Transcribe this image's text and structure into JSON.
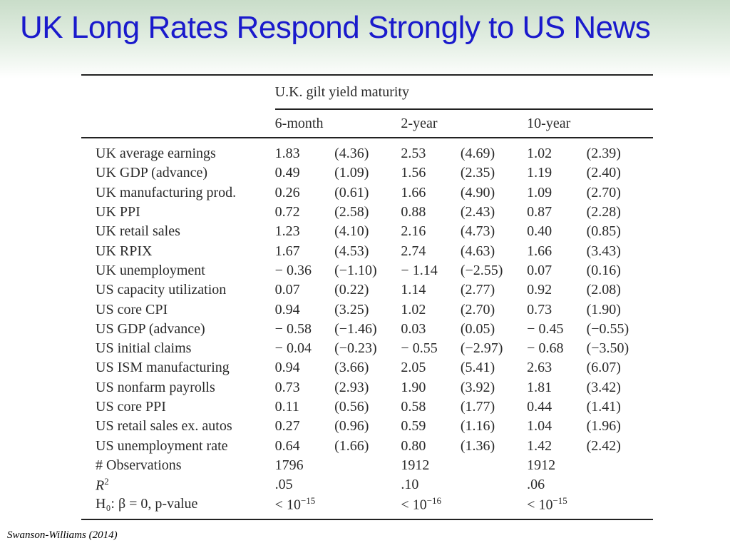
{
  "slide": {
    "title": "UK Long Rates Respond Strongly to US News",
    "source": "Swanson-Williams (2014)"
  },
  "table": {
    "group_header": "U.K. gilt yield maturity",
    "columns": [
      "6-month",
      "2-year",
      "10-year"
    ],
    "rows": [
      {
        "label": "UK average earnings",
        "values": [
          "1.83",
          "(4.36)",
          "2.53",
          "(4.69)",
          "1.02",
          "(2.39)"
        ]
      },
      {
        "label": "UK GDP (advance)",
        "values": [
          "0.49",
          "(1.09)",
          "1.56",
          "(2.35)",
          "1.19",
          "(2.40)"
        ]
      },
      {
        "label": "UK manufacturing prod.",
        "values": [
          "0.26",
          "(0.61)",
          "1.66",
          "(4.90)",
          "1.09",
          "(2.70)"
        ]
      },
      {
        "label": "UK PPI",
        "values": [
          "0.72",
          "(2.58)",
          "0.88",
          "(2.43)",
          "0.87",
          "(2.28)"
        ]
      },
      {
        "label": "UK retail sales",
        "values": [
          "1.23",
          "(4.10)",
          "2.16",
          "(4.73)",
          "0.40",
          "(0.85)"
        ]
      },
      {
        "label": "UK RPIX",
        "values": [
          "1.67",
          "(4.53)",
          "2.74",
          "(4.63)",
          "1.66",
          "(3.43)"
        ]
      },
      {
        "label": "UK unemployment",
        "values": [
          "− 0.36",
          "(−1.10)",
          "− 1.14",
          "(−2.55)",
          "0.07",
          "(0.16)"
        ]
      },
      {
        "label": "US capacity utilization",
        "values": [
          "0.07",
          "(0.22)",
          "1.14",
          "(2.77)",
          "0.92",
          "(2.08)"
        ]
      },
      {
        "label": "US core CPI",
        "values": [
          "0.94",
          "(3.25)",
          "1.02",
          "(2.70)",
          "0.73",
          "(1.90)"
        ]
      },
      {
        "label": "US GDP (advance)",
        "values": [
          "− 0.58",
          "(−1.46)",
          "0.03",
          "(0.05)",
          "− 0.45",
          "(−0.55)"
        ]
      },
      {
        "label": "US initial claims",
        "values": [
          "− 0.04",
          "(−0.23)",
          "− 0.55",
          "(−2.97)",
          "− 0.68",
          "(−3.50)"
        ]
      },
      {
        "label": "US ISM manufacturing",
        "values": [
          "0.94",
          "(3.66)",
          "2.05",
          "(5.41)",
          "2.63",
          "(6.07)"
        ]
      },
      {
        "label": "US nonfarm payrolls",
        "values": [
          "0.73",
          "(2.93)",
          "1.90",
          "(3.92)",
          "1.81",
          "(3.42)"
        ]
      },
      {
        "label": "US core PPI",
        "values": [
          "0.11",
          "(0.56)",
          "0.58",
          "(1.77)",
          "0.44",
          "(1.41)"
        ]
      },
      {
        "label": "US retail sales ex. autos",
        "values": [
          "0.27",
          "(0.96)",
          "0.59",
          "(1.16)",
          "1.04",
          "(1.96)"
        ]
      },
      {
        "label": "US unemployment rate",
        "values": [
          "0.64",
          "(1.66)",
          "0.80",
          "(1.36)",
          "1.42",
          "(2.42)"
        ]
      },
      {
        "label": "# Observations",
        "values": [
          "1796",
          "",
          "1912",
          "",
          "1912",
          ""
        ]
      }
    ],
    "r2": {
      "label_base": "R",
      "label_sup": "2",
      "values": [
        ".05",
        ".10",
        ".06"
      ]
    },
    "h0": {
      "label": "H₀: β = 0, p-value",
      "values": [
        {
          "base": "< 10",
          "sup": "−15"
        },
        {
          "base": "< 10",
          "sup": "−16"
        },
        {
          "base": "< 10",
          "sup": "−15"
        }
      ]
    }
  }
}
